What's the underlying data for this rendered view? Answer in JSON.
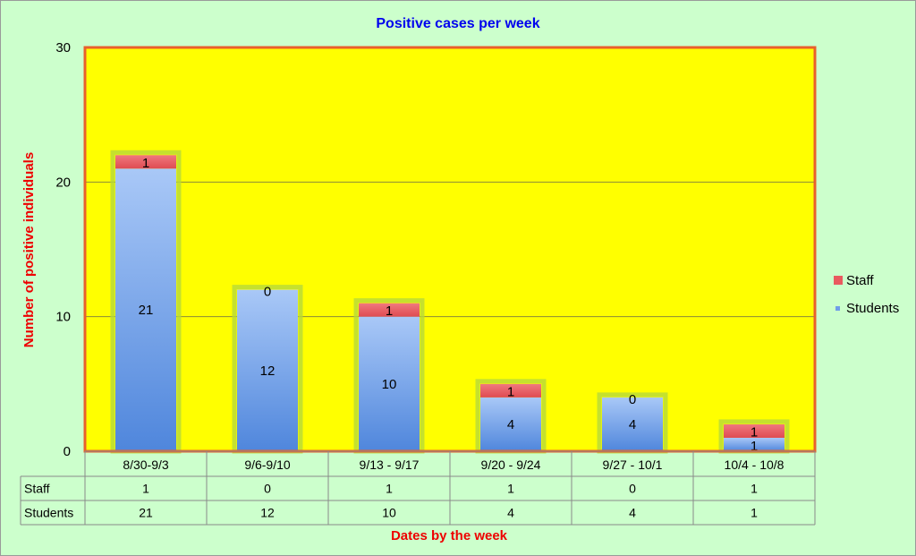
{
  "chart_data": {
    "type": "bar",
    "stacked": true,
    "title": "Positive cases per week",
    "xlabel": "Dates by the week",
    "ylabel": "Number of positive individuals",
    "ylim": [
      0,
      30
    ],
    "yticks": [
      0,
      10,
      20,
      30
    ],
    "categories": [
      "8/30-9/3",
      "9/6-9/10",
      "9/13 - 9/17",
      "9/20 - 9/24",
      "9/27 - 10/1",
      "10/4 - 10/8"
    ],
    "series": [
      {
        "name": "Students",
        "values": [
          21,
          12,
          10,
          4,
          4,
          1
        ],
        "color": "#6f9de8"
      },
      {
        "name": "Staff",
        "values": [
          1,
          0,
          1,
          1,
          0,
          1
        ],
        "color": "#e95a5f"
      }
    ],
    "legend_position": "right",
    "legend_order": [
      "Staff",
      "Students"
    ],
    "plot_background": "#ffff00",
    "plot_border": "#e8602c",
    "page_background": "#ccffcc",
    "gridlines": true,
    "data_table": true
  }
}
